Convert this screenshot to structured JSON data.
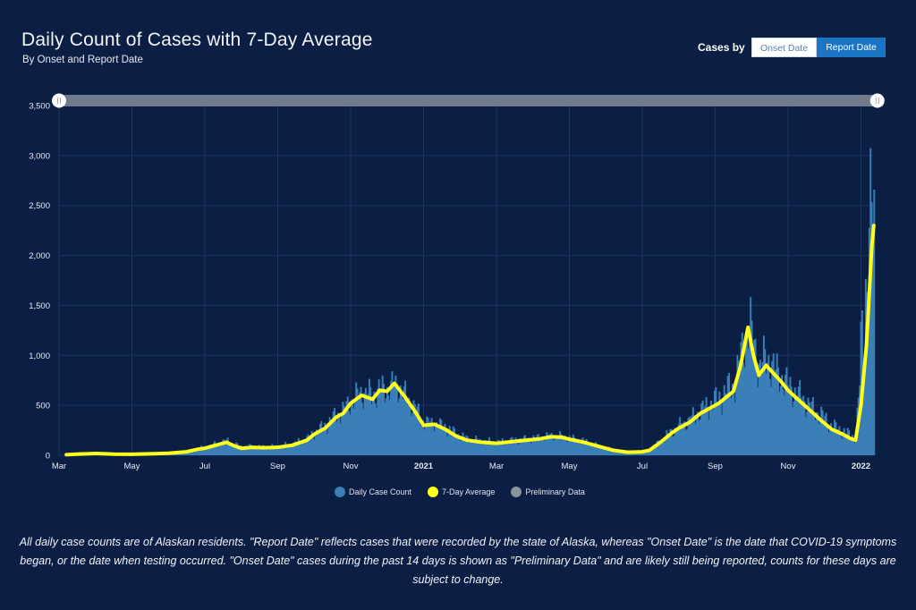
{
  "header": {
    "title": "Daily Count of Cases with 7-Day Average",
    "subtitle": "By Onset and Report Date"
  },
  "toggle": {
    "label": "Cases by",
    "options": [
      {
        "label": "Onset Date",
        "selected": false
      },
      {
        "label": "Report Date",
        "selected": true
      }
    ]
  },
  "legend": {
    "items": [
      {
        "label": "Daily Case Count",
        "color": "#3a7fb8"
      },
      {
        "label": "7-Day Average",
        "color": "#ffff1a"
      },
      {
        "label": "Preliminary Data",
        "color": "#8a929e"
      }
    ]
  },
  "footnote": "All daily case counts are of Alaskan residents. \"Report Date\" reflects cases that were recorded by the state of Alaska, whereas \"Onset Date\" is the date that COVID-19 symptoms began, or the date when testing occurred. \"Onset Date\" cases during the past 14 days is shown as \"Preliminary Data\" and are likely still being reported, counts for these days are subject to change.",
  "colors": {
    "background": "#0b1f45",
    "bars": "#3a7fb8",
    "average": "#ffff1a",
    "grid": "#1e3560",
    "slider_track": "#6f7a8c",
    "toggle_active": "#1b74c4"
  },
  "range_slider": {
    "start": 0.0,
    "end": 1.0
  },
  "chart_data": {
    "type": "bar",
    "title": "Daily Count of Cases with 7-Day Average",
    "xlabel": "",
    "ylabel": "",
    "ylim": [
      0,
      3500
    ],
    "yticks": [
      0,
      500,
      1000,
      1500,
      2000,
      2500,
      3000,
      3500
    ],
    "ytick_labels": [
      "0",
      "500",
      "1,000",
      "1,500",
      "2,000",
      "2,500",
      "3,000",
      "3,500"
    ],
    "xticks": [
      {
        "label": "Mar",
        "month_index": 0,
        "bold": false
      },
      {
        "label": "May",
        "month_index": 2,
        "bold": false
      },
      {
        "label": "Jul",
        "month_index": 4,
        "bold": false
      },
      {
        "label": "Sep",
        "month_index": 6,
        "bold": false
      },
      {
        "label": "Nov",
        "month_index": 8,
        "bold": false
      },
      {
        "label": "2021",
        "month_index": 10,
        "bold": true
      },
      {
        "label": "Mar",
        "month_index": 12,
        "bold": false
      },
      {
        "label": "May",
        "month_index": 14,
        "bold": false
      },
      {
        "label": "Jul",
        "month_index": 16,
        "bold": false
      },
      {
        "label": "Sep",
        "month_index": 18,
        "bold": false
      },
      {
        "label": "Nov",
        "month_index": 20,
        "bold": false
      },
      {
        "label": "2022",
        "month_index": 22,
        "bold": true
      }
    ],
    "x_start": "2020-03-01",
    "x_end_month_index": 22.35,
    "grid": true,
    "legend_position": "bottom-center",
    "series": [
      {
        "name": "7-Day Average",
        "type": "line",
        "x_month_index": [
          0.2,
          0.5,
          1,
          1.5,
          2,
          2.5,
          3,
          3.5,
          3.8,
          4,
          4.3,
          4.6,
          4.8,
          5,
          5.3,
          5.6,
          6,
          6.4,
          6.8,
          7,
          7.3,
          7.6,
          7.8,
          8,
          8.3,
          8.6,
          8.8,
          9,
          9.2,
          9.5,
          9.8,
          10,
          10.3,
          10.6,
          10.9,
          11.2,
          11.6,
          12,
          12.4,
          12.8,
          13.2,
          13.5,
          13.8,
          14,
          14.4,
          14.8,
          15.2,
          15.6,
          16,
          16.2,
          16.5,
          16.8,
          17,
          17.3,
          17.6,
          17.9,
          18.1,
          18.3,
          18.5,
          18.7,
          18.9,
          19.05,
          19.2,
          19.4,
          19.6,
          19.8,
          20,
          20.3,
          20.6,
          20.9,
          21.2,
          21.5,
          21.7,
          21.85,
          22,
          22.15,
          22.3,
          22.35
        ],
        "values": [
          5,
          12,
          18,
          12,
          10,
          14,
          20,
          35,
          60,
          70,
          100,
          130,
          95,
          70,
          80,
          75,
          80,
          100,
          150,
          210,
          270,
          380,
          420,
          520,
          600,
          560,
          650,
          640,
          720,
          580,
          420,
          300,
          310,
          260,
          190,
          150,
          130,
          120,
          135,
          150,
          165,
          185,
          180,
          160,
          130,
          90,
          50,
          30,
          35,
          50,
          130,
          220,
          270,
          330,
          420,
          480,
          520,
          580,
          640,
          900,
          1280,
          1000,
          800,
          900,
          820,
          740,
          650,
          550,
          450,
          350,
          260,
          210,
          170,
          150,
          500,
          1100,
          2100,
          2300
        ],
        "color": "#ffff1a"
      },
      {
        "name": "Daily Case Count",
        "type": "bar",
        "x_month_index": [
          0.2,
          0.5,
          1,
          1.5,
          2,
          2.5,
          3,
          3.5,
          3.8,
          4,
          4.3,
          4.6,
          4.8,
          5,
          5.3,
          5.6,
          6,
          6.4,
          6.8,
          7,
          7.3,
          7.6,
          7.8,
          8,
          8.3,
          8.6,
          8.8,
          9,
          9.2,
          9.5,
          9.8,
          10,
          10.3,
          10.6,
          10.9,
          11.2,
          11.6,
          12,
          12.4,
          12.8,
          13.2,
          13.5,
          13.8,
          14,
          14.4,
          14.8,
          15.2,
          15.6,
          16,
          16.2,
          16.5,
          16.8,
          17,
          17.3,
          17.6,
          17.9,
          18.1,
          18.3,
          18.5,
          18.7,
          18.9,
          19.05,
          19.2,
          19.4,
          19.6,
          19.8,
          20,
          20.3,
          20.6,
          20.9,
          21.2,
          21.5,
          21.7,
          21.85,
          22,
          22.15,
          22.3,
          22.35
        ],
        "peak_values": [
          10,
          20,
          28,
          20,
          16,
          22,
          30,
          55,
          90,
          110,
          150,
          190,
          140,
          110,
          120,
          110,
          120,
          150,
          220,
          300,
          390,
          520,
          580,
          700,
          800,
          760,
          840,
          820,
          890,
          740,
          560,
          420,
          400,
          360,
          270,
          210,
          190,
          170,
          190,
          210,
          230,
          250,
          240,
          220,
          180,
          120,
          70,
          45,
          55,
          80,
          200,
          320,
          380,
          460,
          580,
          680,
          740,
          850,
          900,
          1300,
          1720,
          1400,
          1150,
          1250,
          1100,
          980,
          880,
          760,
          620,
          520,
          380,
          320,
          260,
          240,
          1780,
          2850,
          3300,
          3050
        ],
        "color": "#3a7fb8"
      }
    ]
  }
}
